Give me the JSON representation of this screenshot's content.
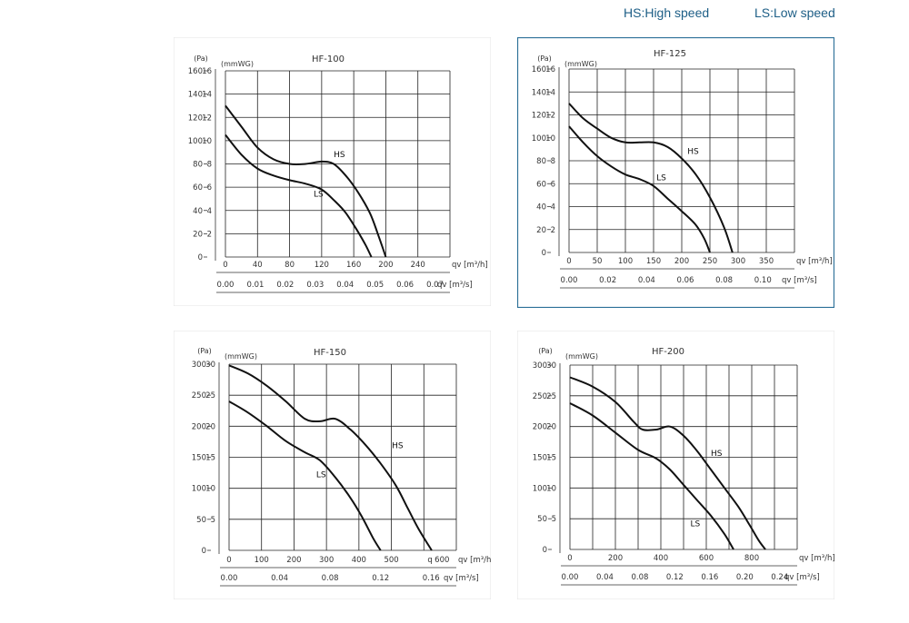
{
  "legend": {
    "hs": "HS:High speed",
    "ls": "LS:Low speed"
  },
  "chart_data": [
    {
      "type": "line",
      "title": "HF-100",
      "y_unit_pa": "(Pa)",
      "y_unit_mm": "(mmWG)",
      "pa_ticks": [
        "160",
        "140",
        "120",
        "100",
        "80",
        "60",
        "40",
        "20",
        "0"
      ],
      "mm_ticks": [
        "16",
        "14",
        "12",
        "10",
        "8",
        "6",
        "4",
        "2"
      ],
      "x_ticks_m3h": [
        "0",
        "40",
        "80",
        "120",
        "160",
        "200",
        "240"
      ],
      "x_unit_m3h": "qv [m³/h]",
      "x_ticks_m3s": [
        "0.00",
        "0.01",
        "0.02",
        "0.03",
        "0.04",
        "0.05",
        "0.06",
        "0.07"
      ],
      "x_unit_m3s": "qv [m³/s]",
      "xlim": [
        0,
        280
      ],
      "ylim": [
        0,
        160
      ],
      "series": [
        {
          "name": "HS",
          "x": [
            0,
            20,
            40,
            60,
            80,
            100,
            120,
            135,
            150,
            165,
            180,
            190,
            200
          ],
          "y": [
            130,
            112,
            94,
            84,
            80,
            80,
            82,
            80,
            70,
            56,
            38,
            20,
            0
          ]
        },
        {
          "name": "LS",
          "x": [
            0,
            20,
            40,
            60,
            80,
            100,
            120,
            135,
            150,
            165,
            175,
            182
          ],
          "y": [
            105,
            88,
            76,
            70,
            66,
            63,
            58,
            49,
            38,
            22,
            10,
            0
          ]
        }
      ],
      "curve_labels": [
        {
          "text": "HS",
          "x": 135,
          "y": 86
        },
        {
          "text": "LS",
          "x": 110,
          "y": 52
        }
      ]
    },
    {
      "type": "line",
      "title": "HF-125",
      "y_unit_pa": "(Pa)",
      "y_unit_mm": "(mmWG)",
      "pa_ticks": [
        "160",
        "140",
        "120",
        "100",
        "80",
        "60",
        "40",
        "20",
        "0"
      ],
      "mm_ticks": [
        "16",
        "14",
        "12",
        "10",
        "8",
        "6",
        "4",
        "2"
      ],
      "x_ticks_m3h": [
        "0",
        "50",
        "100",
        "150",
        "200",
        "250",
        "300",
        "350"
      ],
      "x_unit_m3h": "qv [m³/h]",
      "x_ticks_m3s": [
        "0.00",
        "0.02",
        "0.04",
        "0.06",
        "0.08",
        "0.10"
      ],
      "x_unit_m3s": "qv [m³/s]",
      "xlim": [
        0,
        400
      ],
      "ylim": [
        0,
        160
      ],
      "series": [
        {
          "name": "HS",
          "x": [
            0,
            25,
            50,
            75,
            100,
            125,
            150,
            175,
            200,
            225,
            250,
            275,
            290
          ],
          "y": [
            130,
            117,
            108,
            100,
            96,
            96,
            96,
            92,
            82,
            68,
            48,
            22,
            0
          ]
        },
        {
          "name": "LS",
          "x": [
            0,
            25,
            50,
            75,
            100,
            125,
            150,
            175,
            200,
            225,
            240,
            250
          ],
          "y": [
            110,
            96,
            84,
            75,
            68,
            64,
            58,
            47,
            36,
            24,
            12,
            0
          ]
        }
      ],
      "curve_labels": [
        {
          "text": "HS",
          "x": 210,
          "y": 86
        },
        {
          "text": "LS",
          "x": 155,
          "y": 63
        }
      ]
    },
    {
      "type": "line",
      "title": "HF-150",
      "y_unit_pa": "(Pa)",
      "y_unit_mm": "(mmWG)",
      "pa_ticks": [
        "300",
        "250",
        "200",
        "150",
        "100",
        "50",
        "0"
      ],
      "mm_ticks": [
        "30",
        "25",
        "20",
        "15",
        "10",
        "5"
      ],
      "x_ticks_m3h": [
        "0",
        "100",
        "200",
        "300",
        "400",
        "500",
        "q",
        "600"
      ],
      "x_unit_m3h": "qv [m³/h]",
      "x_ticks_m3s": [
        "0.00",
        "0.04",
        "0.08",
        "0.12",
        "0.16"
      ],
      "x_unit_m3s": "qv [m³/s]",
      "xlim": [
        0,
        600
      ],
      "ylim": [
        0,
        300
      ],
      "series": [
        {
          "name": "HS",
          "x": [
            0,
            50,
            100,
            150,
            200,
            240,
            280,
            320,
            360,
            400,
            440,
            470,
            500,
            535
          ],
          "y": [
            298,
            285,
            265,
            240,
            212,
            208,
            212,
            195,
            170,
            140,
            105,
            70,
            35,
            0
          ]
        },
        {
          "name": "LS",
          "x": [
            0,
            50,
            100,
            150,
            200,
            240,
            280,
            320,
            350,
            380,
            400
          ],
          "y": [
            240,
            222,
            200,
            176,
            158,
            145,
            118,
            85,
            55,
            20,
            0
          ]
        }
      ],
      "curve_labels": [
        {
          "text": "HS",
          "x": 430,
          "y": 165
        },
        {
          "text": "LS",
          "x": 230,
          "y": 118
        }
      ]
    },
    {
      "type": "line",
      "title": "HF-200",
      "y_unit_pa": "(Pa)",
      "y_unit_mm": "(mmWG)",
      "pa_ticks": [
        "300",
        "250",
        "200",
        "150",
        "100",
        "50",
        "0"
      ],
      "mm_ticks": [
        "30",
        "25",
        "20",
        "15",
        "10",
        "5"
      ],
      "x_ticks_m3h": [
        "0",
        "200",
        "400",
        "600",
        "800"
      ],
      "x_unit_m3h": "qv [m³/h]",
      "x_ticks_m3s": [
        "0.00",
        "0.04",
        "0.08",
        "0.12",
        "0.16",
        "0.20",
        "0.24"
      ],
      "x_unit_m3s": "qv [m³/s]",
      "xlim": [
        0,
        1000
      ],
      "ylim": [
        0,
        300
      ],
      "series": [
        {
          "name": "HS",
          "x": [
            0,
            100,
            200,
            280,
            320,
            380,
            440,
            500,
            560,
            620,
            680,
            740,
            790,
            830,
            860
          ],
          "y": [
            280,
            265,
            240,
            208,
            195,
            195,
            200,
            185,
            160,
            130,
            100,
            70,
            40,
            15,
            0
          ]
        },
        {
          "name": "LS",
          "x": [
            0,
            100,
            200,
            300,
            380,
            440,
            500,
            560,
            620,
            680,
            720
          ],
          "y": [
            238,
            218,
            190,
            162,
            148,
            130,
            105,
            80,
            55,
            25,
            0
          ]
        }
      ],
      "curve_labels": [
        {
          "text": "HS",
          "x": 620,
          "y": 152
        },
        {
          "text": "LS",
          "x": 530,
          "y": 38
        }
      ]
    }
  ]
}
